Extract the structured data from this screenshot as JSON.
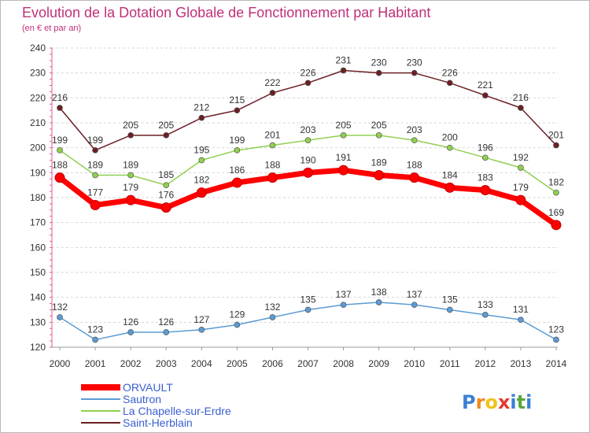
{
  "chart_data": {
    "type": "line",
    "title": "Evolution de la Dotation Globale de Fonctionnement par Habitant",
    "subtitle": "(en € et par an)",
    "xlabel": "",
    "ylabel": "",
    "categories": [
      "2000",
      "2001",
      "2002",
      "2003",
      "2004",
      "2005",
      "2006",
      "2007",
      "2008",
      "2009",
      "2010",
      "2011",
      "2012",
      "2013",
      "2014"
    ],
    "ylim": [
      120,
      240
    ],
    "yticks": [
      120,
      130,
      140,
      150,
      160,
      170,
      180,
      190,
      200,
      210,
      220,
      230,
      240
    ],
    "grid": "horizontal dashed",
    "legend_position": "bottom-left",
    "series": [
      {
        "name": "ORVAULT",
        "color": "#ff0000",
        "values": [
          188,
          177,
          179,
          176,
          182,
          186,
          188,
          190,
          191,
          189,
          188,
          184,
          183,
          179,
          169
        ]
      },
      {
        "name": "Sautron",
        "color": "#5b9bd5",
        "values": [
          132,
          123,
          126,
          126,
          127,
          129,
          132,
          135,
          137,
          138,
          137,
          135,
          133,
          131,
          123
        ]
      },
      {
        "name": "La Chapelle-sur-Erdre",
        "color": "#90d050",
        "values": [
          199,
          189,
          189,
          185,
          195,
          199,
          201,
          203,
          205,
          205,
          203,
          200,
          196,
          192,
          182
        ]
      },
      {
        "name": "Saint-Herblain",
        "color": "#6b1f24",
        "values": [
          216,
          199,
          205,
          205,
          212,
          215,
          222,
          226,
          231,
          230,
          230,
          226,
          221,
          216,
          201
        ]
      }
    ]
  },
  "logo": {
    "text": "Proxiti",
    "letters": [
      "P",
      "r",
      "o",
      "x",
      "i",
      "t",
      "i"
    ],
    "colors": [
      "#3b7fd4",
      "#f08a1c",
      "#f0c419",
      "#e03a2f",
      "#3b7fd4",
      "#5aa83c",
      "#3b7fd4"
    ]
  }
}
